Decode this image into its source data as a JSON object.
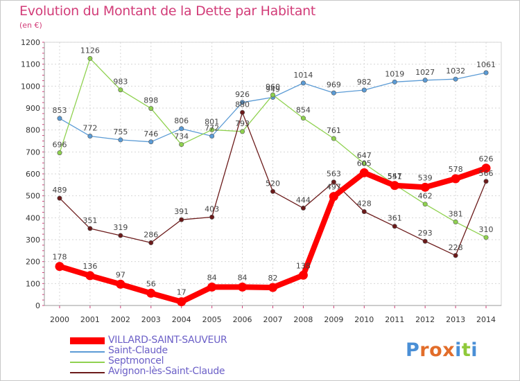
{
  "header": {
    "title": "Evolution du Montant de la Dette par Habitant",
    "unit": "(en €)"
  },
  "logo": {
    "text": "Proxiti",
    "letters": [
      "P",
      "r",
      "o",
      "x",
      "i",
      "t",
      "i"
    ],
    "colors": [
      "#4a8fd6",
      "#e26d2a",
      "#e26d2a",
      "#e26d2a",
      "#4a8fd6",
      "#8fc93a",
      "#4a8fd6"
    ]
  },
  "chart_data": {
    "type": "line",
    "title": "Evolution du Montant de la Dette par Habitant",
    "ylabel": "(en €)",
    "xlabel": "",
    "x": [
      2000,
      2001,
      2002,
      2003,
      2004,
      2005,
      2006,
      2007,
      2008,
      2009,
      2010,
      2011,
      2012,
      2013,
      2014
    ],
    "ylim": [
      0,
      1200
    ],
    "yticks": [
      0,
      100,
      200,
      300,
      400,
      500,
      600,
      700,
      800,
      900,
      1000,
      1100,
      1200
    ],
    "grid": true,
    "legend_position": "bottom-left",
    "series": [
      {
        "name": "VILLARD-SAINT-SAUVEUR",
        "color": "#ff0000",
        "emphasis": true,
        "values": [
          178,
          136,
          97,
          56,
          17,
          84,
          84,
          82,
          138,
          497,
          605,
          547,
          539,
          578,
          626
        ]
      },
      {
        "name": "Saint-Claude",
        "color": "#5b9bd5",
        "emphasis": false,
        "values": [
          853,
          772,
          755,
          746,
          806,
          772,
          926,
          949,
          1014,
          969,
          982,
          1019,
          1027,
          1032,
          1061
        ]
      },
      {
        "name": "Septmoncel",
        "color": "#8fd14f",
        "emphasis": false,
        "values": [
          696,
          1126,
          983,
          898,
          734,
          801,
          793,
          960,
          854,
          761,
          647,
          551,
          462,
          381,
          310
        ]
      },
      {
        "name": "Avignon-lès-Saint-Claude",
        "color": "#6b1a1a",
        "emphasis": false,
        "values": [
          489,
          351,
          319,
          286,
          391,
          403,
          880,
          520,
          444,
          563,
          428,
          361,
          293,
          228,
          566
        ]
      }
    ]
  }
}
